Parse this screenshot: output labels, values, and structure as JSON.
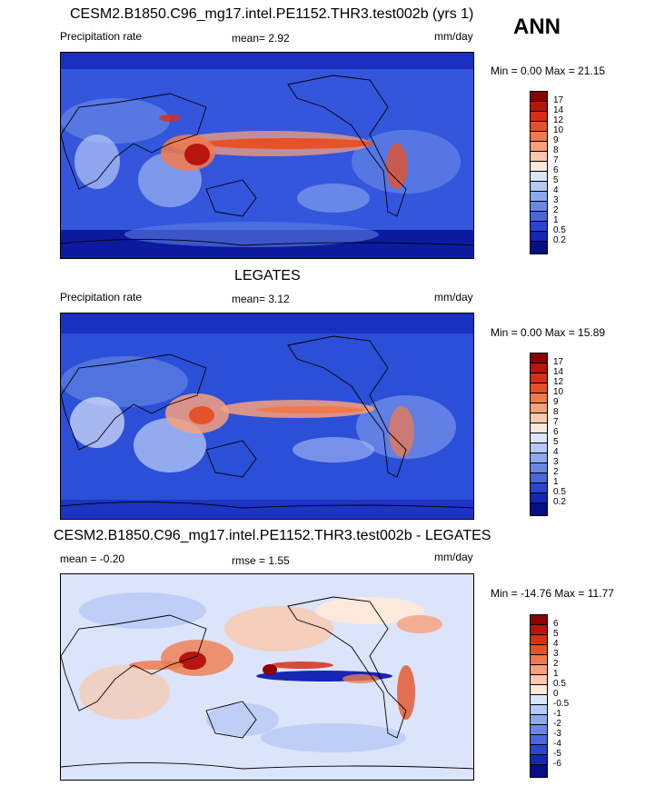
{
  "season": "ANN",
  "panels": [
    {
      "title": "CESM2.B1850.C96_mg17.intel.PE1152.THR3.test002b (yrs 1)",
      "left_label": "Precipitation rate",
      "center_label": "mean=   2.92",
      "right_label": "mm/day",
      "minmax": "Min =   0.00 Max =  21.15",
      "cbar_labels": [
        "17",
        "14",
        "12",
        "10",
        "9",
        "8",
        "7",
        "6",
        "5",
        "4",
        "3",
        "2",
        "1",
        "0.5",
        "0.2"
      ],
      "cbar_colors": [
        "#8b0000",
        "#b8150c",
        "#d62f16",
        "#e65228",
        "#f07a4e",
        "#f7a07c",
        "#fbc8ad",
        "#fde8dc",
        "#dbe4fb",
        "#b6c8f5",
        "#8ea8ee",
        "#6a88e6",
        "#4a66dc",
        "#2c44cf",
        "#1626b5",
        "#060f86"
      ]
    },
    {
      "title": "LEGATES",
      "left_label": "Precipitation rate",
      "center_label": "mean=   3.12",
      "right_label": "mm/day",
      "minmax": "Min =   0.00 Max =  15.89",
      "cbar_labels": [
        "17",
        "14",
        "12",
        "10",
        "9",
        "8",
        "7",
        "6",
        "5",
        "4",
        "3",
        "2",
        "1",
        "0.5",
        "0.2"
      ],
      "cbar_colors": [
        "#8b0000",
        "#b8150c",
        "#d62f16",
        "#e65228",
        "#f07a4e",
        "#f7a07c",
        "#fbc8ad",
        "#fde8dc",
        "#dbe4fb",
        "#b6c8f5",
        "#8ea8ee",
        "#6a88e6",
        "#4a66dc",
        "#2c44cf",
        "#1626b5",
        "#060f86"
      ]
    },
    {
      "title": "CESM2.B1850.C96_mg17.intel.PE1152.THR3.test002b - LEGATES",
      "left_label": "mean =  -0.20",
      "center_label": "rmse =   1.55",
      "right_label": "mm/day",
      "minmax": "Min = -14.76 Max =  11.77",
      "cbar_labels": [
        "6",
        "5",
        "4",
        "3",
        "2",
        "1",
        "0.5",
        "0",
        "-0.5",
        "-1",
        "-2",
        "-3",
        "-4",
        "-5",
        "-6"
      ],
      "cbar_colors": [
        "#8b0000",
        "#b8150c",
        "#d62f16",
        "#e65228",
        "#f07a4e",
        "#f7a07c",
        "#fbc8ad",
        "#fde8dc",
        "#dbe4fb",
        "#b6c8f5",
        "#8ea8ee",
        "#6a88e6",
        "#4a66dc",
        "#2c44cf",
        "#1626b5",
        "#060f86"
      ]
    }
  ]
}
